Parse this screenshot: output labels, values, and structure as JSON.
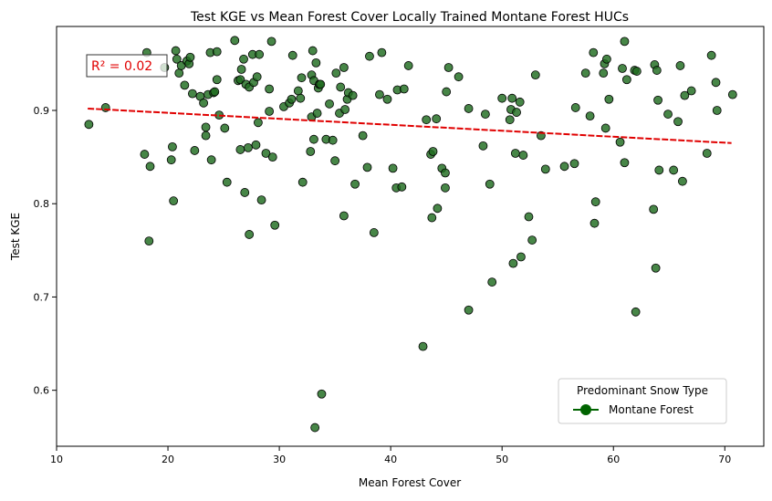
{
  "chart_data": {
    "type": "scatter",
    "title": "Test KGE vs Mean Forest Cover Locally Trained Montane Forest HUCs",
    "xlabel": "Mean Forest Cover",
    "ylabel": "Test KGE",
    "xlim": [
      10,
      73.5
    ],
    "ylim": [
      0.54,
      0.99
    ],
    "x_ticks": [
      10,
      20,
      30,
      40,
      50,
      60,
      70
    ],
    "y_ticks": [
      0.6,
      0.7,
      0.8,
      0.9
    ],
    "x_tick_labels": [
      "10",
      "20",
      "30",
      "40",
      "50",
      "60",
      "70"
    ],
    "y_tick_labels": [
      "0.6",
      "0.7",
      "0.8",
      "0.9"
    ],
    "grid": false,
    "annotation": "R² = 0.02",
    "annotation_color": "#e00000",
    "point_color": "#1e6b1e",
    "trend_color": "#e00000",
    "trend_line": {
      "x": [
        12.8,
        70.6
      ],
      "y": [
        0.902,
        0.865
      ]
    },
    "legend": {
      "title": "Predominant Snow Type",
      "entries": [
        "Montane Forest"
      ],
      "placement": "lower-right",
      "marker_color": "#006400"
    },
    "series": [
      {
        "name": "Montane Forest",
        "points": [
          [
            12.9,
            0.885
          ],
          [
            14.4,
            0.903
          ],
          [
            17.9,
            0.853
          ],
          [
            18.1,
            0.962
          ],
          [
            18.4,
            0.84
          ],
          [
            18.3,
            0.76
          ],
          [
            19.7,
            0.946
          ],
          [
            20.3,
            0.847
          ],
          [
            20.4,
            0.861
          ],
          [
            20.5,
            0.803
          ],
          [
            20.7,
            0.964
          ],
          [
            20.8,
            0.955
          ],
          [
            21.0,
            0.94
          ],
          [
            21.2,
            0.948
          ],
          [
            21.5,
            0.927
          ],
          [
            21.7,
            0.953
          ],
          [
            21.9,
            0.95
          ],
          [
            22.0,
            0.957
          ],
          [
            22.2,
            0.918
          ],
          [
            22.4,
            0.857
          ],
          [
            22.9,
            0.915
          ],
          [
            23.2,
            0.908
          ],
          [
            23.4,
            0.882
          ],
          [
            23.4,
            0.873
          ],
          [
            23.6,
            0.917
          ],
          [
            23.8,
            0.962
          ],
          [
            23.9,
            0.847
          ],
          [
            24.1,
            0.919
          ],
          [
            24.2,
            0.92
          ],
          [
            24.4,
            0.933
          ],
          [
            24.4,
            0.963
          ],
          [
            24.6,
            0.895
          ],
          [
            25.1,
            0.881
          ],
          [
            25.3,
            0.823
          ],
          [
            26.0,
            0.975
          ],
          [
            26.3,
            0.932
          ],
          [
            26.5,
            0.933
          ],
          [
            26.5,
            0.858
          ],
          [
            26.6,
            0.944
          ],
          [
            26.8,
            0.955
          ],
          [
            26.9,
            0.812
          ],
          [
            27.0,
            0.928
          ],
          [
            27.2,
            0.86
          ],
          [
            27.3,
            0.925
          ],
          [
            27.3,
            0.767
          ],
          [
            27.6,
            0.96
          ],
          [
            27.7,
            0.93
          ],
          [
            27.9,
            0.863
          ],
          [
            28.0,
            0.936
          ],
          [
            28.1,
            0.887
          ],
          [
            28.2,
            0.96
          ],
          [
            28.4,
            0.804
          ],
          [
            28.8,
            0.854
          ],
          [
            29.1,
            0.923
          ],
          [
            29.1,
            0.899
          ],
          [
            29.3,
            0.974
          ],
          [
            29.4,
            0.85
          ],
          [
            29.6,
            0.777
          ],
          [
            30.4,
            0.904
          ],
          [
            30.9,
            0.908
          ],
          [
            31.1,
            0.912
          ],
          [
            31.2,
            0.959
          ],
          [
            31.7,
            0.921
          ],
          [
            31.9,
            0.913
          ],
          [
            32.0,
            0.935
          ],
          [
            32.1,
            0.823
          ],
          [
            32.8,
            0.856
          ],
          [
            32.9,
            0.893
          ],
          [
            32.9,
            0.938
          ],
          [
            33.0,
            0.964
          ],
          [
            33.1,
            0.869
          ],
          [
            33.1,
            0.932
          ],
          [
            33.2,
            0.56
          ],
          [
            33.3,
            0.951
          ],
          [
            33.4,
            0.897
          ],
          [
            33.5,
            0.924
          ],
          [
            33.6,
            0.928
          ],
          [
            33.7,
            0.928
          ],
          [
            33.8,
            0.596
          ],
          [
            34.2,
            0.869
          ],
          [
            34.5,
            0.907
          ],
          [
            34.8,
            0.868
          ],
          [
            35.0,
            0.846
          ],
          [
            35.1,
            0.94
          ],
          [
            35.4,
            0.897
          ],
          [
            35.5,
            0.925
          ],
          [
            35.8,
            0.946
          ],
          [
            35.8,
            0.787
          ],
          [
            35.9,
            0.901
          ],
          [
            36.1,
            0.912
          ],
          [
            36.2,
            0.919
          ],
          [
            36.6,
            0.916
          ],
          [
            36.8,
            0.821
          ],
          [
            37.5,
            0.873
          ],
          [
            37.9,
            0.839
          ],
          [
            38.1,
            0.958
          ],
          [
            38.5,
            0.769
          ],
          [
            39.0,
            0.917
          ],
          [
            39.2,
            0.962
          ],
          [
            39.7,
            0.912
          ],
          [
            40.2,
            0.838
          ],
          [
            40.5,
            0.817
          ],
          [
            40.6,
            0.922
          ],
          [
            41.0,
            0.818
          ],
          [
            41.2,
            0.923
          ],
          [
            41.6,
            0.948
          ],
          [
            42.9,
            0.647
          ],
          [
            43.2,
            0.89
          ],
          [
            43.6,
            0.853
          ],
          [
            43.7,
            0.785
          ],
          [
            43.8,
            0.856
          ],
          [
            44.1,
            0.891
          ],
          [
            44.2,
            0.795
          ],
          [
            44.6,
            0.838
          ],
          [
            44.9,
            0.833
          ],
          [
            44.9,
            0.817
          ],
          [
            45.0,
            0.92
          ],
          [
            45.2,
            0.946
          ],
          [
            46.1,
            0.936
          ],
          [
            47.0,
            0.686
          ],
          [
            47.0,
            0.902
          ],
          [
            48.3,
            0.862
          ],
          [
            48.5,
            0.896
          ],
          [
            48.9,
            0.821
          ],
          [
            49.1,
            0.716
          ],
          [
            50.0,
            0.913
          ],
          [
            50.7,
            0.89
          ],
          [
            50.8,
            0.901
          ],
          [
            50.9,
            0.913
          ],
          [
            51.0,
            0.736
          ],
          [
            51.2,
            0.854
          ],
          [
            51.3,
            0.898
          ],
          [
            51.6,
            0.909
          ],
          [
            51.7,
            0.743
          ],
          [
            51.9,
            0.852
          ],
          [
            52.4,
            0.786
          ],
          [
            52.7,
            0.761
          ],
          [
            53.0,
            0.938
          ],
          [
            53.5,
            0.873
          ],
          [
            53.9,
            0.837
          ],
          [
            55.6,
            0.84
          ],
          [
            56.5,
            0.843
          ],
          [
            56.6,
            0.903
          ],
          [
            57.5,
            0.94
          ],
          [
            57.9,
            0.894
          ],
          [
            58.2,
            0.962
          ],
          [
            58.3,
            0.779
          ],
          [
            58.4,
            0.802
          ],
          [
            59.1,
            0.94
          ],
          [
            59.2,
            0.95
          ],
          [
            59.3,
            0.881
          ],
          [
            59.4,
            0.955
          ],
          [
            59.6,
            0.912
          ],
          [
            60.6,
            0.866
          ],
          [
            60.8,
            0.945
          ],
          [
            61.0,
            0.974
          ],
          [
            61.0,
            0.844
          ],
          [
            61.2,
            0.933
          ],
          [
            61.9,
            0.943
          ],
          [
            62.0,
            0.684
          ],
          [
            62.1,
            0.942
          ],
          [
            63.6,
            0.794
          ],
          [
            63.7,
            0.949
          ],
          [
            63.8,
            0.731
          ],
          [
            63.9,
            0.943
          ],
          [
            64.0,
            0.911
          ],
          [
            64.1,
            0.836
          ],
          [
            64.9,
            0.896
          ],
          [
            65.4,
            0.836
          ],
          [
            65.8,
            0.888
          ],
          [
            66.0,
            0.948
          ],
          [
            66.2,
            0.824
          ],
          [
            66.4,
            0.916
          ],
          [
            67.0,
            0.921
          ],
          [
            68.4,
            0.854
          ],
          [
            68.8,
            0.959
          ],
          [
            69.2,
            0.93
          ],
          [
            69.3,
            0.9
          ],
          [
            70.7,
            0.917
          ]
        ]
      }
    ]
  }
}
